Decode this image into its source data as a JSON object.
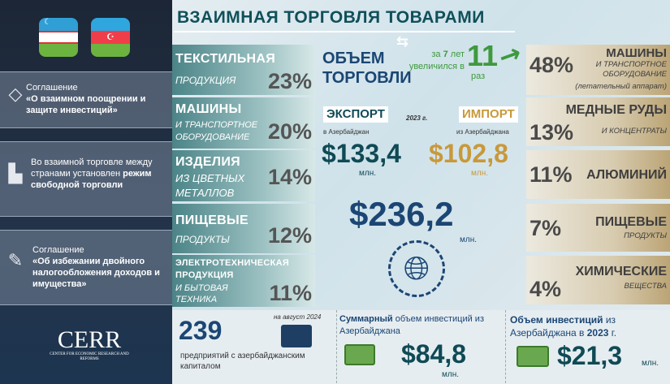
{
  "sidebar": {
    "flags": [
      "uzbekistan-flag",
      "azerbaijan-flag"
    ],
    "panels": [
      {
        "line1": "Соглашение",
        "bold": "«О взаимном поощрении и защите инвестиций»",
        "icon": "diamond-icon"
      },
      {
        "line1": "Во взаимной торговле между странами установлен",
        "bold": "режим свободной торговли",
        "icon": "document-exchange-icon"
      },
      {
        "line1": "Соглашение",
        "bold": "«Об избежании двойного налогообложения доходов и имущества»",
        "icon": "contract-pen-icon"
      }
    ],
    "logo": {
      "name": "CERR",
      "sub": "CENTER FOR ECONOMIC RESEARCH AND REFORMS"
    }
  },
  "title": "ВЗАИМНАЯ ТОРГОВЛЯ ТОВАРАМИ",
  "export_structure": [
    {
      "head": "ТЕКСТИЛЬНАЯ",
      "sub": "ПРОДУКЦИЯ",
      "pct": "23%"
    },
    {
      "head": "МАШИНЫ",
      "sub": "И ТРАНСПОРТНОЕ ОБОРУДОВАНИЕ",
      "pct": "20%"
    },
    {
      "head": "ИЗДЕЛИЯ",
      "sub": "ИЗ ЦВЕТНЫХ МЕТАЛЛОВ",
      "pct": "14%"
    },
    {
      "head": "ПИЩЕВЫЕ",
      "sub": "ПРОДУКТЫ",
      "pct": "12%"
    },
    {
      "head": "ЭЛЕКТРОТЕХНИЧЕСКАЯ ПРОДУКЦИЯ",
      "sub": "И БЫТОВАЯ ТЕХНИКА",
      "pct": "11%"
    }
  ],
  "import_structure": [
    {
      "pct": "48%",
      "head": "МАШИНЫ",
      "sub": "И ТРАНСПОРТНОЕ ОБОРУДОВАНИЕ",
      "note": "(летательный аппарат)"
    },
    {
      "pct": "13%",
      "head": "МЕДНЫЕ РУДЫ",
      "sub": "И КОНЦЕНТРАТЫ"
    },
    {
      "pct": "11%",
      "head": "АЛЮМИНИЙ"
    },
    {
      "pct": "7%",
      "head": "ПИЩЕВЫЕ",
      "sub": "ПРОДУКТЫ"
    },
    {
      "pct": "4%",
      "head": "ХИМИЧЕСКИЕ",
      "sub": "ВЕЩЕСТВА"
    }
  ],
  "volume": {
    "label1": "ОБЪЕМ",
    "label2": "ТОРГОВЛИ",
    "growth_pre": "за",
    "growth_years": "7",
    "growth_years_unit": "лет",
    "growth_mid": "увеличился в",
    "growth_factor": "11",
    "growth_unit": "раз"
  },
  "trade": {
    "year": "2023 г.",
    "export": {
      "label": "ЭКСПОРТ",
      "sub": "в Азербайджан",
      "value": "$133,4",
      "unit": "млн."
    },
    "import": {
      "label": "ИМПОРТ",
      "sub": "из Азербайджана",
      "value": "$102,8",
      "unit": "млн."
    },
    "total": {
      "value": "$236,2",
      "unit": "млн."
    }
  },
  "bottom": {
    "enterprises": {
      "date": "на август 2024",
      "count": "239",
      "text": "предприятий с азербайджанским капиталом"
    },
    "total_investment": {
      "bold": "Суммарный",
      "text": " объем инвестиций из Азербайджана",
      "value": "$84,8",
      "unit": "млн."
    },
    "investment_2023": {
      "bold": "Объем инвестиций",
      "text1": " из Азербайджана в ",
      "year": "2023",
      "text2": " г.",
      "value": "$21,3",
      "unit": "млн."
    }
  },
  "colors": {
    "sidebar": "#1c2636",
    "teal": "#0f4a55",
    "navy": "#1b4674",
    "green": "#3e9a3e",
    "gold": "#c8993a"
  }
}
